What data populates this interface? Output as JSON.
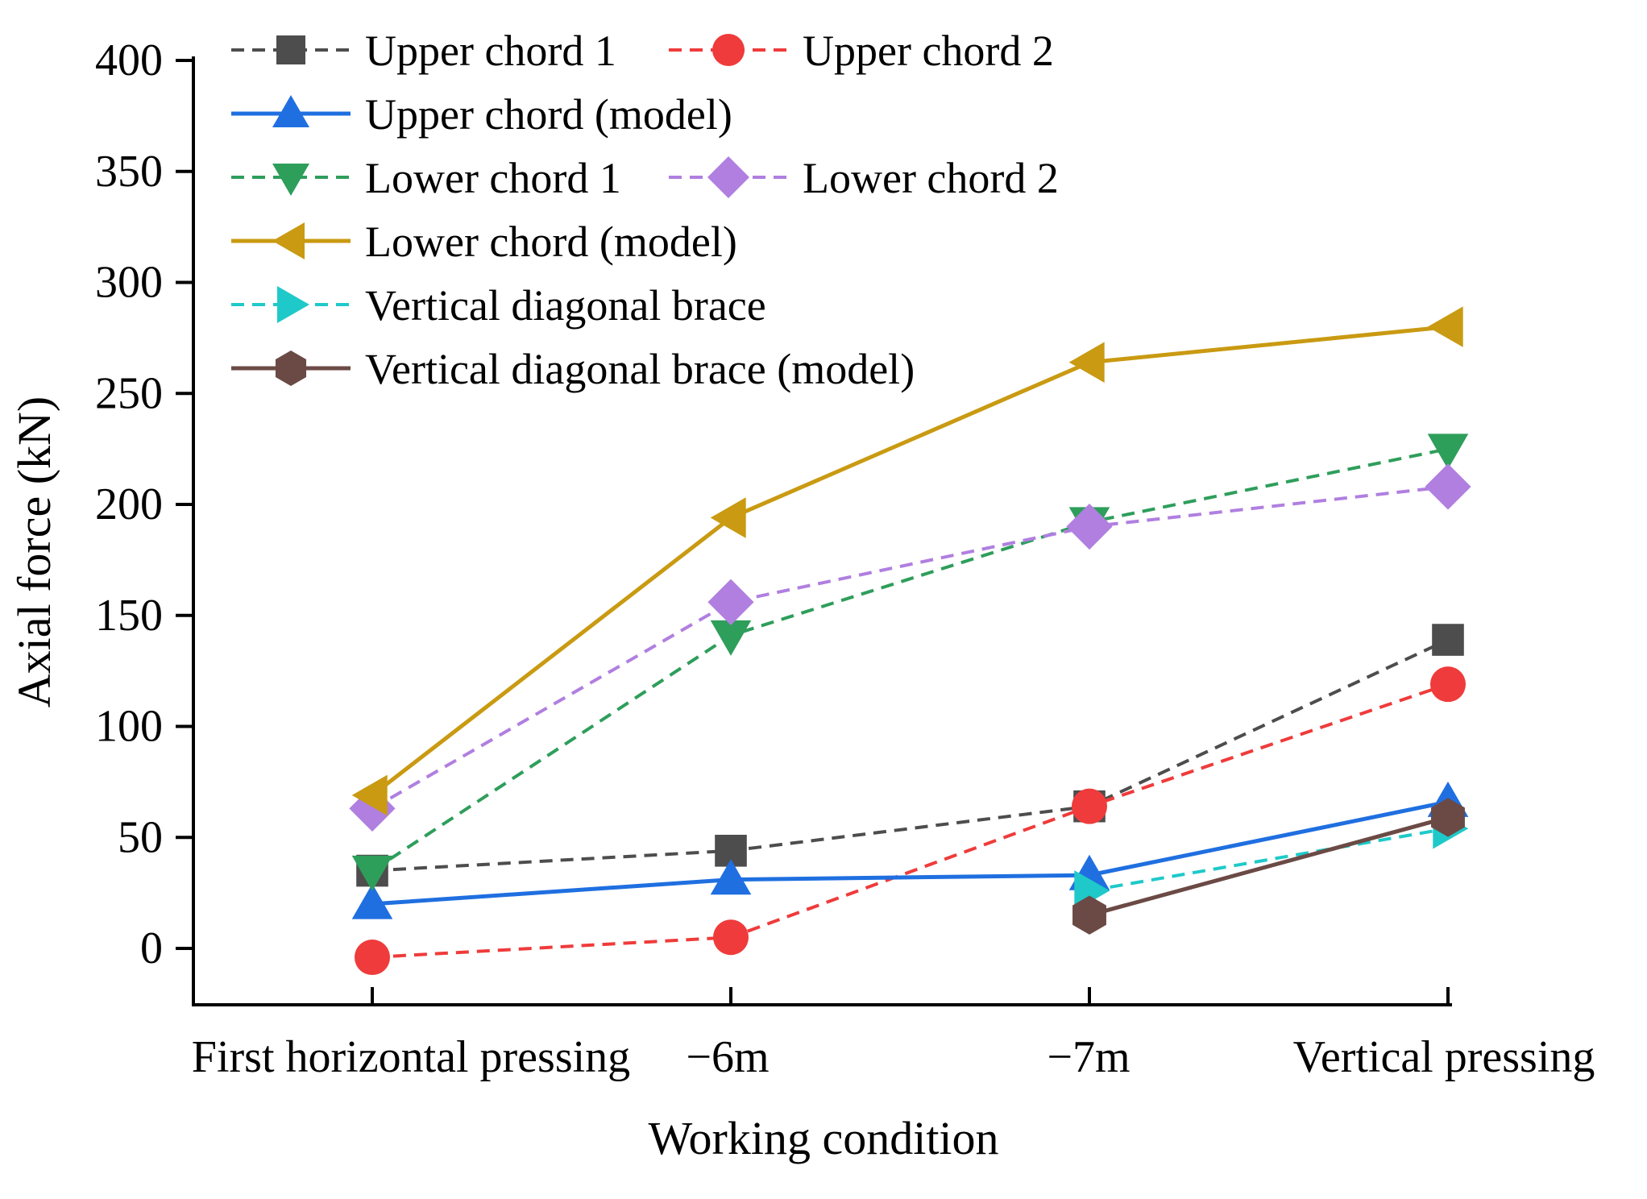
{
  "chart_data": {
    "type": "line",
    "title": "",
    "xlabel": "Working condition",
    "ylabel": "Axial force (kN)",
    "ylim": [
      -25,
      400
    ],
    "yticks": [
      0,
      50,
      100,
      150,
      200,
      250,
      300,
      350,
      400
    ],
    "grid": false,
    "legend_position": "top-left",
    "categories": [
      "First horizontal pressing",
      "−6m",
      "−7m",
      "Vertical pressing"
    ],
    "series": [
      {
        "name": "Upper chord 1",
        "values": [
          35,
          44,
          64,
          139
        ],
        "color": "#4d4d4d",
        "dash": "dashed",
        "marker": "square"
      },
      {
        "name": "Upper chord 2",
        "values": [
          -4,
          5,
          64,
          119
        ],
        "color": "#ef3b3b",
        "dash": "dashed",
        "marker": "circle"
      },
      {
        "name": "Upper chord (model)",
        "values": [
          20,
          31,
          33,
          66
        ],
        "color": "#1f6fe0",
        "dash": "solid",
        "marker": "triangle-up"
      },
      {
        "name": "Lower chord 1",
        "values": [
          35,
          141,
          192,
          225
        ],
        "color": "#2e9e5b",
        "dash": "dashed",
        "marker": "triangle-down"
      },
      {
        "name": "Lower chord 2",
        "values": [
          63,
          156,
          190,
          208
        ],
        "color": "#b07fe0",
        "dash": "dashed",
        "marker": "diamond"
      },
      {
        "name": "Lower chord (model)",
        "values": [
          69,
          194,
          264,
          280
        ],
        "color": "#c99a12",
        "dash": "solid",
        "marker": "triangle-left"
      },
      {
        "name": "Vertical diagonal brace",
        "values": [
          null,
          null,
          26,
          54
        ],
        "color": "#1fc9c9",
        "dash": "dashed",
        "marker": "triangle-right"
      },
      {
        "name": "Vertical diagonal brace (model)",
        "values": [
          null,
          null,
          15,
          59
        ],
        "color": "#6b4a45",
        "dash": "solid",
        "marker": "hexagon"
      }
    ]
  }
}
